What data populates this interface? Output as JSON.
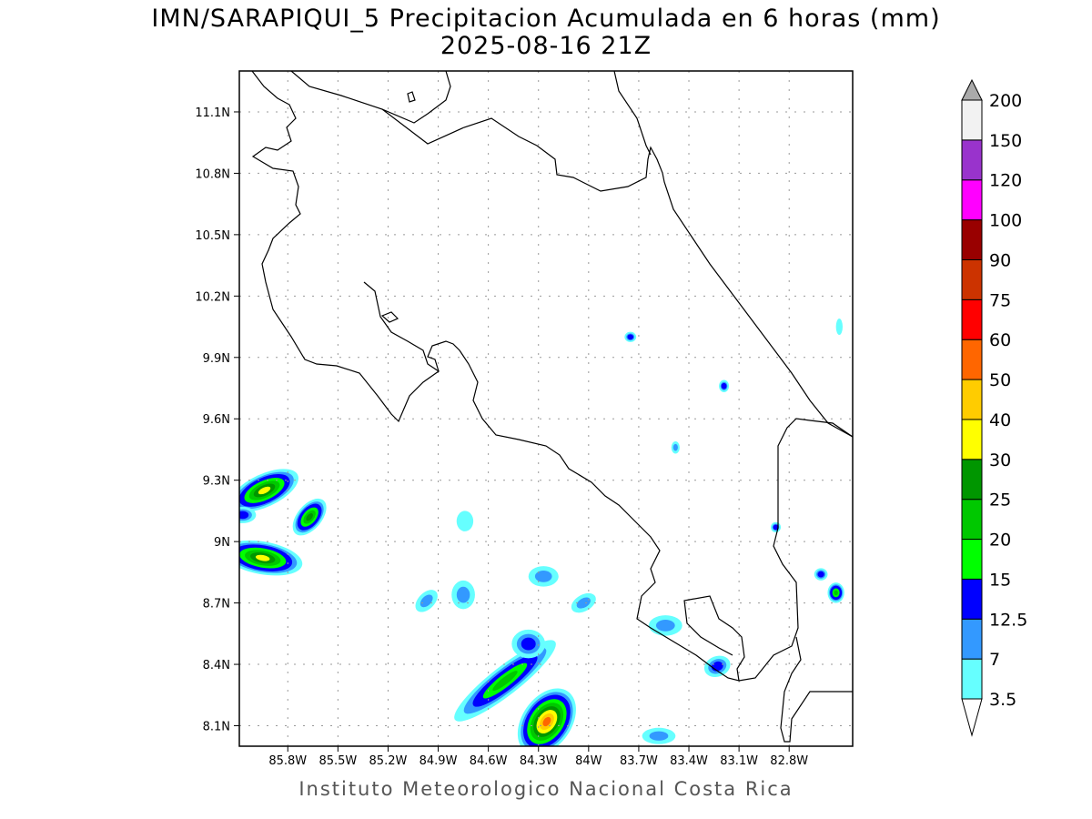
{
  "title": "IMN/SARAPIQUI_5 Precipitacion Acumulada en 6 horas (mm)",
  "subtitle": "2025-08-16 21Z",
  "footer": "Instituto Meteorologico Nacional Costa Rica",
  "chart_data": {
    "type": "heatmap",
    "variable": "Precipitacion Acumulada en 6 horas (mm)",
    "lon_range": [
      -86.09,
      -82.42
    ],
    "lat_range": [
      8.0,
      11.3
    ],
    "grid": true,
    "lon_ticks": [
      {
        "value": -85.8,
        "label": "85.8W"
      },
      {
        "value": -85.5,
        "label": "85.5W"
      },
      {
        "value": -85.2,
        "label": "85.2W"
      },
      {
        "value": -84.9,
        "label": "84.9W"
      },
      {
        "value": -84.6,
        "label": "84.6W"
      },
      {
        "value": -84.3,
        "label": "84.3W"
      },
      {
        "value": -84.0,
        "label": "84W"
      },
      {
        "value": -83.7,
        "label": "83.7W"
      },
      {
        "value": -83.4,
        "label": "83.4W"
      },
      {
        "value": -83.1,
        "label": "83.1W"
      },
      {
        "value": -82.8,
        "label": "82.8W"
      }
    ],
    "lat_ticks": [
      {
        "value": 11.1,
        "label": "11.1N"
      },
      {
        "value": 10.8,
        "label": "10.8N"
      },
      {
        "value": 10.5,
        "label": "10.5N"
      },
      {
        "value": 10.2,
        "label": "10.2N"
      },
      {
        "value": 9.9,
        "label": "9.9N"
      },
      {
        "value": 9.6,
        "label": "9.6N"
      },
      {
        "value": 9.3,
        "label": "9.3N"
      },
      {
        "value": 9.0,
        "label": "9N"
      },
      {
        "value": 8.7,
        "label": "8.7N"
      },
      {
        "value": 8.4,
        "label": "8.4N"
      },
      {
        "value": 8.1,
        "label": "8.1N"
      }
    ],
    "colorbar": {
      "levels": [
        "3.5",
        "7",
        "12.5",
        "15",
        "20",
        "25",
        "30",
        "40",
        "50",
        "60",
        "75",
        "90",
        "100",
        "120",
        "150",
        "200"
      ],
      "colors": [
        "#66ffff",
        "#3399ff",
        "#0000ff",
        "#00ff00",
        "#00c800",
        "#009600",
        "#ffff00",
        "#ffcc00",
        "#ff6600",
        "#ff0000",
        "#cc3300",
        "#990000",
        "#ff00ff",
        "#9933cc",
        "#f2f2f2"
      ],
      "over_color": "#aaaaaa",
      "under_color": "#ffffff"
    },
    "cells": [
      {
        "lon": -85.94,
        "lat": 9.25,
        "rx": 0.22,
        "ry": 0.08,
        "rot": 25,
        "max_level": 6
      },
      {
        "lon": -85.67,
        "lat": 9.12,
        "rx": 0.13,
        "ry": 0.06,
        "rot": 50,
        "max_level": 5
      },
      {
        "lon": -86.07,
        "lat": 9.13,
        "rx": 0.08,
        "ry": 0.04,
        "rot": 0,
        "max_level": 2
      },
      {
        "lon": -85.95,
        "lat": 8.92,
        "rx": 0.24,
        "ry": 0.08,
        "rot": -10,
        "max_level": 6
      },
      {
        "lon": -84.74,
        "lat": 9.1,
        "rx": 0.05,
        "ry": 0.05,
        "rot": 0,
        "max_level": 0
      },
      {
        "lon": -84.75,
        "lat": 8.74,
        "rx": 0.07,
        "ry": 0.07,
        "rot": 0,
        "max_level": 1
      },
      {
        "lon": -84.97,
        "lat": 8.71,
        "rx": 0.08,
        "ry": 0.04,
        "rot": 45,
        "max_level": 1
      },
      {
        "lon": -84.5,
        "lat": 8.32,
        "rx": 0.38,
        "ry": 0.07,
        "rot": 38,
        "max_level": 4
      },
      {
        "lon": -84.25,
        "lat": 8.12,
        "rx": 0.22,
        "ry": 0.12,
        "rot": 55,
        "max_level": 8
      },
      {
        "lon": -84.36,
        "lat": 8.5,
        "rx": 0.1,
        "ry": 0.07,
        "rot": 0,
        "max_level": 2
      },
      {
        "lon": -84.27,
        "lat": 8.83,
        "rx": 0.09,
        "ry": 0.05,
        "rot": 0,
        "max_level": 1
      },
      {
        "lon": -84.03,
        "lat": 8.7,
        "rx": 0.08,
        "ry": 0.04,
        "rot": 30,
        "max_level": 1
      },
      {
        "lon": -83.54,
        "lat": 8.59,
        "rx": 0.1,
        "ry": 0.05,
        "rot": 0,
        "max_level": 1
      },
      {
        "lon": -83.23,
        "lat": 8.39,
        "rx": 0.08,
        "ry": 0.05,
        "rot": 20,
        "max_level": 2
      },
      {
        "lon": -82.52,
        "lat": 8.75,
        "rx": 0.05,
        "ry": 0.05,
        "rot": 0,
        "max_level": 4
      },
      {
        "lon": -82.61,
        "lat": 8.84,
        "rx": 0.04,
        "ry": 0.03,
        "rot": 0,
        "max_level": 2
      },
      {
        "lon": -83.75,
        "lat": 10.0,
        "rx": 0.035,
        "ry": 0.025,
        "rot": 0,
        "max_level": 2
      },
      {
        "lon": -83.19,
        "lat": 9.76,
        "rx": 0.03,
        "ry": 0.03,
        "rot": 0,
        "max_level": 2
      },
      {
        "lon": -83.48,
        "lat": 9.46,
        "rx": 0.025,
        "ry": 0.03,
        "rot": 0,
        "max_level": 1
      },
      {
        "lon": -82.88,
        "lat": 9.07,
        "rx": 0.03,
        "ry": 0.025,
        "rot": 0,
        "max_level": 2
      },
      {
        "lon": -83.58,
        "lat": 8.05,
        "rx": 0.1,
        "ry": 0.04,
        "rot": 0,
        "max_level": 1
      },
      {
        "lon": -82.5,
        "lat": 10.05,
        "rx": 0.02,
        "ry": 0.04,
        "rot": 0,
        "max_level": 0
      }
    ]
  }
}
